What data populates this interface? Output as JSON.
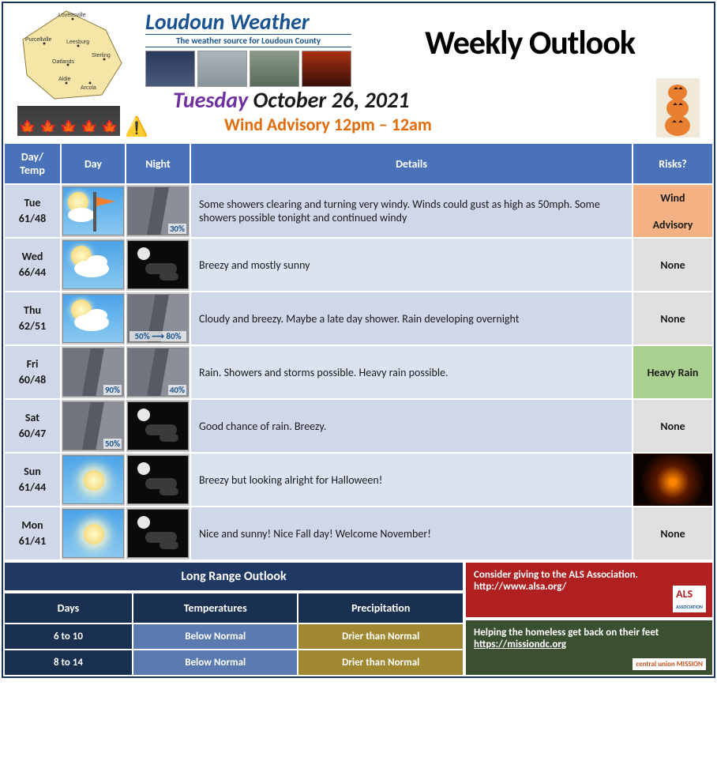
{
  "brand": {
    "name": "Loudoun Weather",
    "tagline": "The weather source for Loudoun County"
  },
  "title": "Weekly Outlook",
  "date": {
    "dow": "Tuesday",
    "rest": " October 26, 2021"
  },
  "advisory_text": "Wind Advisory 12pm – 12am",
  "map_towns": [
    "Lovettsville",
    "Purcellville",
    "Leesburg",
    "Oatlands",
    "Sterling",
    "Aldie",
    "Arcola"
  ],
  "columns": {
    "c1": "Day/\nTemp",
    "c2": "Day",
    "c3": "Night",
    "c4": "Details",
    "c5": "Risks?"
  },
  "rows": [
    {
      "label": "Tue\n61/48",
      "day_icon": "wind-flag",
      "day_pct": "",
      "night_icon": "rain",
      "night_pct": "30%",
      "details": "Some showers clearing and turning very  windy. Winds could gust as high as 50mph. Some showers possible tonight and continued windy",
      "risk_text": "Wind Advisory",
      "risk_class": "risk-orange"
    },
    {
      "label": "Wed\n66/44",
      "day_icon": "partly-sunny",
      "day_pct": "",
      "night_icon": "moon-clouds",
      "night_pct": "",
      "details": "Breezy and mostly sunny",
      "risk_text": "None",
      "risk_class": "risk-none"
    },
    {
      "label": "Thu\n62/51",
      "day_icon": "partly-sunny",
      "day_pct": "",
      "night_icon": "rain",
      "night_pct": "50% ⟶ 80%",
      "details": "Cloudy and breezy. Maybe a late day shower. Rain developing overnight",
      "risk_text": "None",
      "risk_class": "risk-none"
    },
    {
      "label": "Fri\n60/48",
      "day_icon": "rain",
      "day_pct": "90%",
      "night_icon": "rain",
      "night_pct": "40%",
      "details": "Rain. Showers and storms possible. Heavy rain possible.",
      "risk_text": "Heavy Rain",
      "risk_class": "risk-green"
    },
    {
      "label": "Sat\n60/47",
      "day_icon": "rain",
      "day_pct": "50%",
      "night_icon": "moon-clouds",
      "night_pct": "",
      "details": "Good chance of rain. Breezy.",
      "risk_text": "None",
      "risk_class": "risk-none"
    },
    {
      "label": "Sun\n61/44",
      "day_icon": "sunny",
      "day_pct": "",
      "night_icon": "moon-clouds",
      "night_pct": "",
      "details": "Breezy but looking alright for Halloween!",
      "risk_text": "",
      "risk_class": "risk-img"
    },
    {
      "label": "Mon\n61/41",
      "day_icon": "sunny",
      "day_pct": "",
      "night_icon": "moon-clouds",
      "night_pct": "",
      "details": "Nice and sunny! Nice Fall day! Welcome November!",
      "risk_text": "None",
      "risk_class": "risk-none"
    }
  ],
  "lr": {
    "title": "Long Range Outlook",
    "cols": {
      "c1": "Days",
      "c2": "Temperatures",
      "c3": "Precipitation"
    },
    "rows": [
      {
        "d": "6 to 10",
        "t": "Below Normal",
        "p": "Drier than Normal"
      },
      {
        "d": "8 to 14",
        "t": "Below Normal",
        "p": "Drier than Normal"
      }
    ]
  },
  "charity": {
    "als_text": "Consider giving to the ALS Association. http://www.alsa.org/",
    "als_badge": "ALS",
    "als_sub": "ASSOCIATION",
    "mission_text_a": "Helping the homeless get back on their feet ",
    "mission_link": "https://missiondc.org",
    "mission_badge": "central union MISSION"
  },
  "thumb_styles": [
    "linear-gradient(#2a3a5a,#4a5a7a)",
    "linear-gradient(#aab5bb,#8a959b)",
    "linear-gradient(#8a9a8a,#5a6a5a)",
    "linear-gradient(#aa3010,#3a1008)"
  ],
  "leaf_colors": [
    "#c0392b",
    "#e67e22",
    "#f1c40f",
    "#d35400",
    "#8b4513"
  ]
}
